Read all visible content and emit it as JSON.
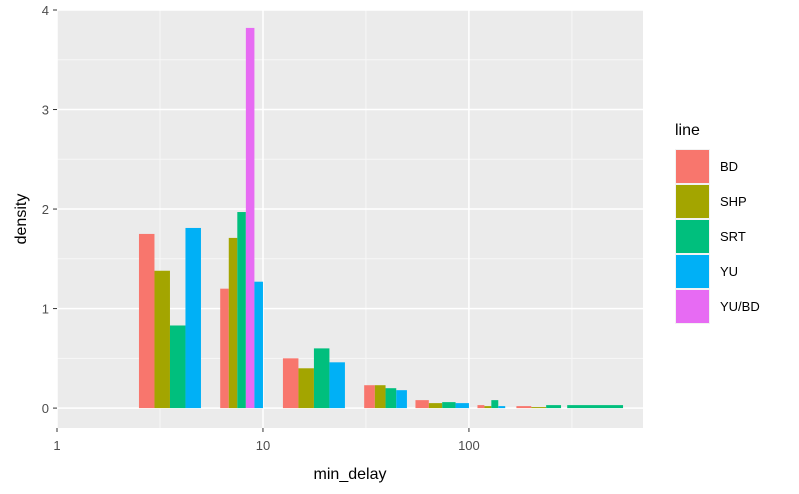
{
  "chart_data": {
    "type": "bar",
    "xlabel": "min_delay",
    "ylabel": "density",
    "x_scale": "log10",
    "xlim": [
      1,
      700
    ],
    "ylim": [
      -0.2,
      4.0
    ],
    "x_ticks": [
      1,
      10,
      100
    ],
    "x_tick_labels": [
      "1",
      "10",
      "100"
    ],
    "y_ticks": [
      0,
      1,
      2,
      3,
      4
    ],
    "y_tick_labels": [
      "0",
      "1",
      "2",
      "3",
      "4"
    ],
    "grid": true,
    "legend_title": "line",
    "legend_position": "right",
    "bins": [
      {
        "x_start": 2.5,
        "x_end": 5.0
      },
      {
        "x_start": 6.2,
        "x_end": 10.0
      },
      {
        "x_start": 12.5,
        "x_end": 25.0
      },
      {
        "x_start": 31.0,
        "x_end": 50.0
      },
      {
        "x_start": 55.0,
        "x_end": 100.0
      },
      {
        "x_start": 110.0,
        "x_end": 150.0
      },
      {
        "x_start": 170.0,
        "x_end": 280.0
      },
      {
        "x_start": 300.0,
        "x_end": 560.0
      }
    ],
    "series": [
      {
        "name": "BD",
        "color": "#F8766D",
        "values": [
          1.75,
          1.2,
          0.5,
          0.23,
          0.08,
          0.03,
          0.02,
          0
        ]
      },
      {
        "name": "SHP",
        "color": "#A3A500",
        "values": [
          1.38,
          1.71,
          0.4,
          0.23,
          0.05,
          0.02,
          0.01,
          0.01
        ]
      },
      {
        "name": "SRT",
        "color": "#00BF7D",
        "values": [
          0.83,
          1.97,
          0.6,
          0.2,
          0.06,
          0.08,
          0.03,
          0.03
        ]
      },
      {
        "name": "YU",
        "color": "#00B0F6",
        "values": [
          1.81,
          1.27,
          0.46,
          0.18,
          0.05,
          0.02,
          0.01,
          0.0
        ]
      },
      {
        "name": "YU/BD",
        "color": "#E76BF3",
        "values": [
          0,
          3.82,
          0,
          0,
          0,
          0,
          0,
          0
        ]
      }
    ],
    "draw_slots": [
      [
        [
          0,
          1,
          2,
          3
        ]
      ],
      [
        [
          0,
          1,
          2,
          4,
          3
        ]
      ],
      [
        [
          0,
          1,
          2,
          3
        ]
      ],
      [
        [
          0,
          1,
          2,
          3
        ]
      ],
      [
        [
          0,
          1,
          2,
          3
        ]
      ],
      [
        [
          0,
          1,
          2,
          3
        ]
      ],
      [
        [
          0,
          1,
          2
        ]
      ],
      [
        [
          2
        ]
      ]
    ]
  }
}
